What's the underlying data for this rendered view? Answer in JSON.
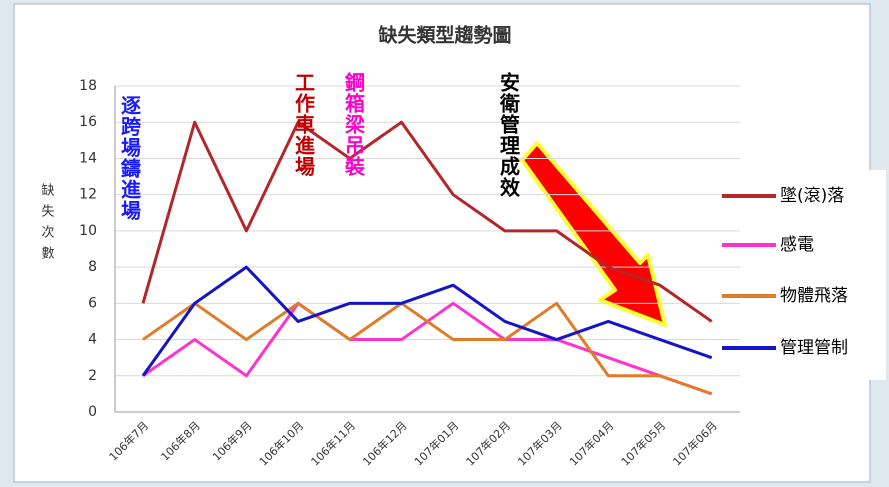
{
  "chart_data": {
    "type": "line",
    "title": "缺失類型趨勢圖",
    "y_label": "缺失次數",
    "categories": [
      "106年7月",
      "106年8月",
      "106年9月",
      "106年10月",
      "106年11月",
      "106年12月",
      "107年01月",
      "107年02月",
      "107年03月",
      "107年04月",
      "107年05月",
      "107年06月"
    ],
    "series": [
      {
        "name": "墜(滾)落",
        "color": "#b3262a",
        "values": [
          6,
          16,
          10,
          16,
          14,
          16,
          12,
          10,
          10,
          8,
          7,
          5
        ]
      },
      {
        "name": "感電",
        "color": "#ff33cc",
        "values": [
          2,
          4,
          2,
          6,
          4,
          4,
          6,
          4,
          4,
          3,
          2,
          1
        ]
      },
      {
        "name": "物體飛落",
        "color": "#e07b28",
        "values": [
          4,
          6,
          4,
          6,
          4,
          6,
          4,
          4,
          6,
          2,
          2,
          1
        ]
      },
      {
        "name": "管理管制",
        "color": "#1414c8",
        "values": [
          2,
          6,
          8,
          5,
          6,
          6,
          7,
          5,
          4,
          5,
          4,
          3
        ]
      }
    ],
    "annotations": [
      {
        "text": "逐跨場鑄進場",
        "color": "#1a1aff"
      },
      {
        "text": "工作車進場",
        "color": "#c00000"
      },
      {
        "text": "鋼箱梁吊裝",
        "color": "#ff00cc"
      },
      {
        "text": "安衛管理成效",
        "color": "#000000"
      }
    ],
    "ylim": [
      0,
      18
    ],
    "yticks": [
      0,
      2,
      4,
      6,
      8,
      10,
      12,
      14,
      16,
      18
    ],
    "grid": true,
    "legend": "right"
  }
}
